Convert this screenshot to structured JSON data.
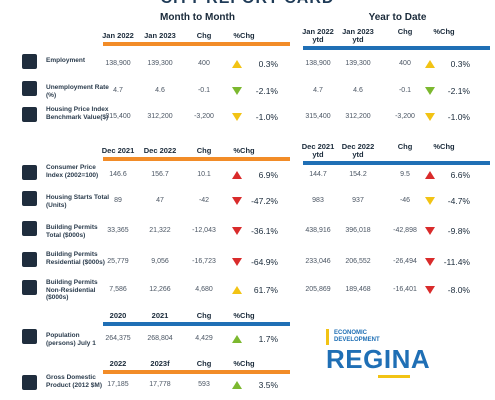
{
  "title": "CITY REPORT CARD",
  "sections": {
    "month_to_month": "Month to Month",
    "year_to_date": "Year to Date"
  },
  "headers": {
    "left_1": [
      "Jan 2022",
      "Jan 2023",
      "Chg",
      "%Chg"
    ],
    "right_1": [
      "Jan 2022 ytd",
      "Jan 2023 ytd",
      "Chg",
      "%Chg"
    ],
    "left_2": [
      "Dec 2021",
      "Dec 2022",
      "Chg",
      "%Chg"
    ],
    "right_2": [
      "Dec 2021 ytd",
      "Dec 2022 ytd",
      "Chg",
      "%Chg"
    ],
    "left_3": [
      "2020",
      "2021",
      "Chg",
      "%Chg"
    ],
    "left_4": [
      "2022",
      "2023f",
      "Chg",
      "%Chg"
    ]
  },
  "rows": [
    {
      "label": "Employment",
      "l": [
        "138,900",
        "139,300",
        "400",
        "0.3%"
      ],
      "r": [
        "138,900",
        "139,300",
        "400",
        "0.3%"
      ],
      "lt": "up-y",
      "rt": "up-y"
    },
    {
      "label": "Unemployment Rate (%)",
      "l": [
        "4.7",
        "4.6",
        "-0.1",
        "-2.1%"
      ],
      "r": [
        "4.7",
        "4.6",
        "-0.1",
        "-2.1%"
      ],
      "lt": "down-g",
      "rt": "down-g"
    },
    {
      "label": "Housing Price Index Benchmark Value($)",
      "l": [
        "315,400",
        "312,200",
        "-3,200",
        "-1.0%"
      ],
      "r": [
        "315,400",
        "312,200",
        "-3,200",
        "-1.0%"
      ],
      "lt": "down-y",
      "rt": "down-y"
    },
    {
      "label": "Consumer Price Index (2002=100)",
      "l": [
        "146.6",
        "156.7",
        "10.1",
        "6.9%"
      ],
      "r": [
        "144.7",
        "154.2",
        "9.5",
        "6.6%"
      ],
      "lt": "up-r",
      "rt": "up-r"
    },
    {
      "label": "Housing Starts Total (Units)",
      "l": [
        "89",
        "47",
        "-42",
        "-47.2%"
      ],
      "r": [
        "983",
        "937",
        "-46",
        "-4.7%"
      ],
      "lt": "down-r",
      "rt": "down-y"
    },
    {
      "label": "Building Permits Total ($000s)",
      "l": [
        "33,365",
        "21,322",
        "-12,043",
        "-36.1%"
      ],
      "r": [
        "438,916",
        "396,018",
        "-42,898",
        "-9.8%"
      ],
      "lt": "down-r",
      "rt": "down-r"
    },
    {
      "label": "Building Permits Residential ($000s)",
      "l": [
        "25,779",
        "9,056",
        "-16,723",
        "-64.9%"
      ],
      "r": [
        "233,046",
        "206,552",
        "-26,494",
        "-11.4%"
      ],
      "lt": "down-r",
      "rt": "down-r"
    },
    {
      "label": "Building Permits Non-Residential ($000s)",
      "l": [
        "7,586",
        "12,266",
        "4,680",
        "61.7%"
      ],
      "r": [
        "205,869",
        "189,468",
        "-16,401",
        "-8.0%"
      ],
      "lt": "up-y",
      "rt": "down-r"
    },
    {
      "label": "Population (persons) July 1",
      "l": [
        "264,375",
        "268,804",
        "4,429",
        "1.7%"
      ],
      "lt": "up-g"
    },
    {
      "label": "Gross Domestic Product (2012 $M)",
      "l": [
        "17,185",
        "17,778",
        "593",
        "3.5%"
      ],
      "lt": "up-g"
    }
  ],
  "logo": {
    "line1": "ECONOMIC",
    "line2": "DEVELOPMENT",
    "big": "REGINA"
  }
}
